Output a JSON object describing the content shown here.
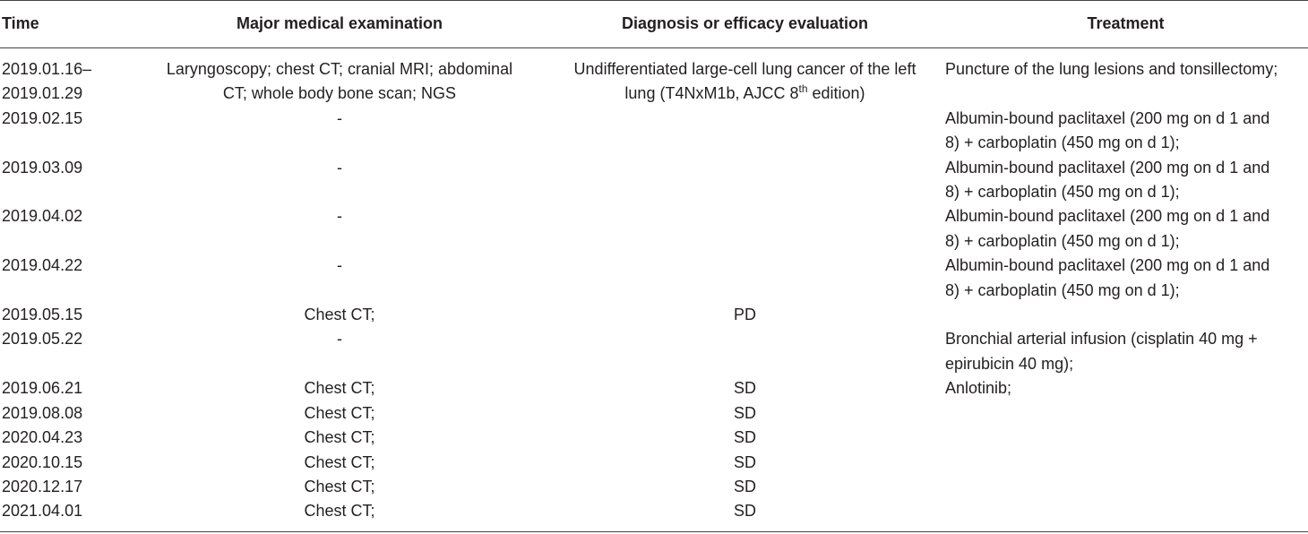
{
  "table": {
    "headers": {
      "time": "Time",
      "exam": "Major medical examination",
      "diag": "Diagnosis or efficacy evaluation",
      "treat": "Treatment"
    },
    "rows": [
      {
        "time_l1": "2019.01.16–",
        "time_l2": "2019.01.29",
        "exam_l1": "Laryngoscopy; chest CT; cranial MRI; abdominal",
        "exam_l2": "CT; whole body bone scan; NGS",
        "diag_l1": "Undifferentiated large-cell lung cancer of the left",
        "diag_l2_a": "lung (T4NxM1b, AJCC 8",
        "diag_l2_sup": "th",
        "diag_l2_b": " edition)",
        "treat_l1": "Puncture of the lung lesions and tonsillectomy;"
      },
      {
        "time": "2019.02.15",
        "exam": "-",
        "diag": "",
        "treat_l1": "Albumin-bound paclitaxel (200 mg on d 1 and",
        "treat_l2": "8) + carboplatin (450 mg on d 1);"
      },
      {
        "time": "2019.03.09",
        "exam": "-",
        "diag": "",
        "treat_l1": "Albumin-bound paclitaxel (200 mg on d 1 and",
        "treat_l2": "8) + carboplatin (450 mg on d 1);"
      },
      {
        "time": "2019.04.02",
        "exam": "-",
        "diag": "",
        "treat_l1": "Albumin-bound paclitaxel (200 mg on d 1 and",
        "treat_l2": "8) + carboplatin (450 mg on d 1);"
      },
      {
        "time": "2019.04.22",
        "exam": "-",
        "diag": "",
        "treat_l1": "Albumin-bound paclitaxel (200 mg on d 1 and",
        "treat_l2": "8) + carboplatin (450 mg on d 1);"
      },
      {
        "time": "2019.05.15",
        "exam": "Chest CT;",
        "diag": "PD",
        "treat": ""
      },
      {
        "time": "2019.05.22",
        "exam": "-",
        "diag": "",
        "treat_l1": "Bronchial arterial infusion (cisplatin 40 mg +",
        "treat_l2": "epirubicin 40 mg);"
      },
      {
        "time": "2019.06.21",
        "exam": "Chest CT;",
        "diag": "SD",
        "treat": "Anlotinib;"
      },
      {
        "time": "2019.08.08",
        "exam": "Chest CT;",
        "diag": "SD",
        "treat": ""
      },
      {
        "time": "2020.04.23",
        "exam": "Chest CT;",
        "diag": "SD",
        "treat": ""
      },
      {
        "time": "2020.10.15",
        "exam": "Chest CT;",
        "diag": "SD",
        "treat": ""
      },
      {
        "time": "2020.12.17",
        "exam": "Chest CT;",
        "diag": "SD",
        "treat": ""
      },
      {
        "time": "2021.04.01",
        "exam": "Chest CT;",
        "diag": "SD",
        "treat": ""
      }
    ]
  }
}
